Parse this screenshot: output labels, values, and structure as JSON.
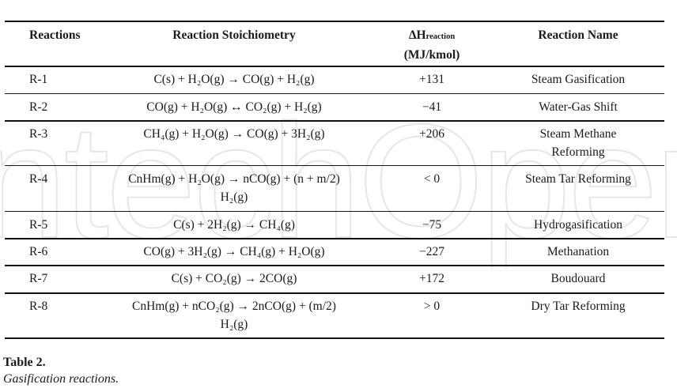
{
  "watermark": "IntechOpen",
  "table": {
    "headers": {
      "reactions": "Reactions",
      "stoichiometry": "Reaction Stoichiometry",
      "enthalpy_symbol": "ΔH",
      "enthalpy_subscript": "reaction",
      "enthalpy_unit": "(MJ/kmol)",
      "name": "Reaction Name"
    },
    "rows": [
      {
        "id": "R-1",
        "stoich": [
          "C(s) + H₂O(g) → CO(g) + H₂(g)",
          ""
        ],
        "dh": "+131",
        "name": [
          "Steam Gasification",
          ""
        ]
      },
      {
        "id": "R-2",
        "stoich": [
          "CO(g) + H₂O(g) ↔ CO₂(g) + H₂(g)",
          ""
        ],
        "dh": "−41",
        "name": [
          "Water-Gas Shift",
          ""
        ]
      },
      {
        "id": "R-3",
        "stoich": [
          "CH₄(g) + H₂O(g) → CO(g) + 3H₂(g)",
          ""
        ],
        "dh": "+206",
        "name": [
          "Steam Methane",
          "Reforming"
        ]
      },
      {
        "id": "R-4",
        "stoich": [
          "CnHm(g) + H₂O(g) → nCO(g) + (n + m/2)",
          "H₂(g)"
        ],
        "dh": "< 0",
        "name": [
          "Steam Tar Reforming",
          ""
        ]
      },
      {
        "id": "R-5",
        "stoich": [
          "C(s) + 2H₂(g) → CH₄(g)",
          ""
        ],
        "dh": "−75",
        "name": [
          "Hydrogasification",
          ""
        ]
      },
      {
        "id": "R-6",
        "stoich": [
          "CO(g) + 3H₂(g) → CH₄(g) + H₂O(g)",
          ""
        ],
        "dh": "−227",
        "name": [
          "Methanation",
          ""
        ]
      },
      {
        "id": "R-7",
        "stoich": [
          "C(s) + CO₂(g) → 2CO(g)",
          ""
        ],
        "dh": "+172",
        "name": [
          "Boudouard",
          ""
        ]
      },
      {
        "id": "R-8",
        "stoich": [
          "CnHm(g) + nCO₂(g) → 2nCO(g) + (m/2)",
          "H₂(g)"
        ],
        "dh": "> 0",
        "name": [
          "Dry Tar Reforming",
          ""
        ]
      }
    ]
  },
  "caption": {
    "title": "Table 2.",
    "text": "Gasification reactions."
  }
}
